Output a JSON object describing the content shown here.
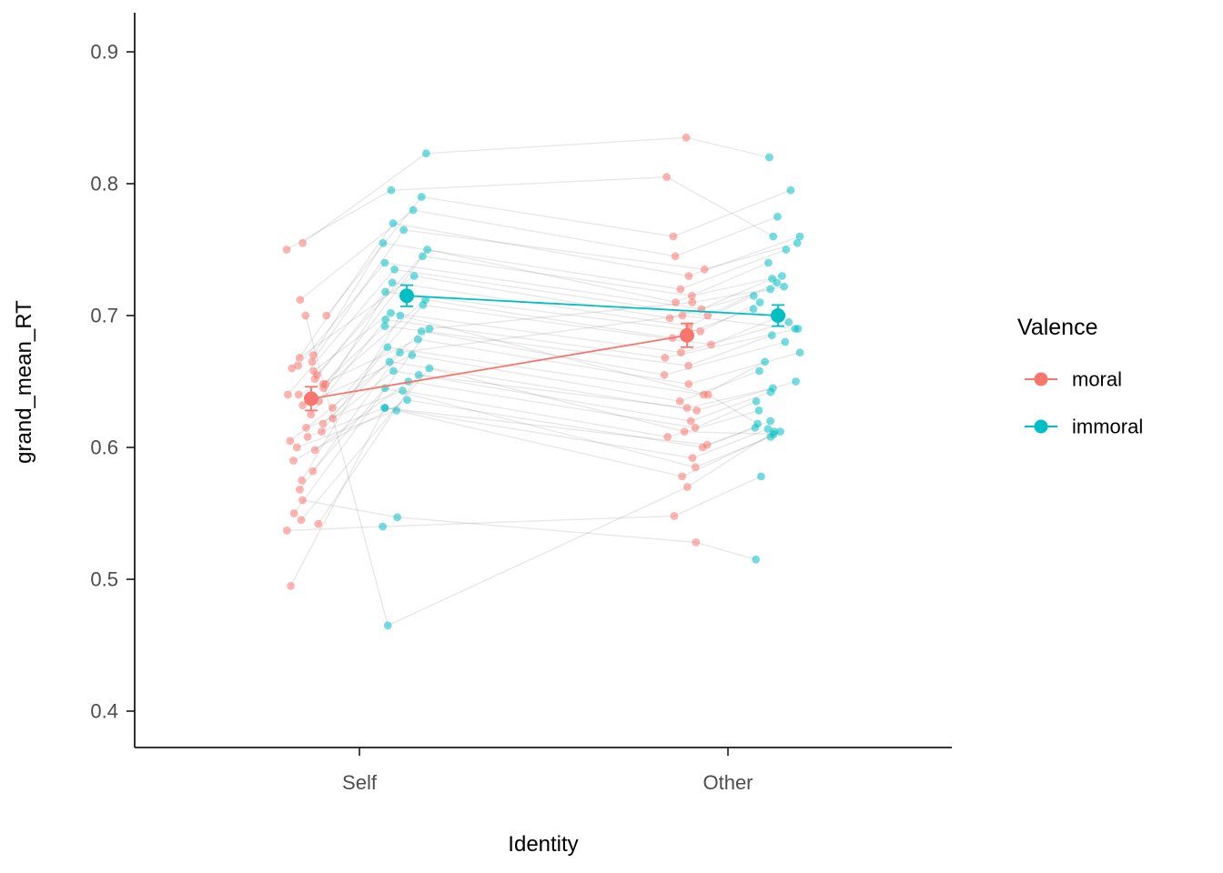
{
  "chart_data": {
    "type": "line",
    "title": "",
    "xlabel": "Identity",
    "ylabel": "grand_mean_RT",
    "x_categories": [
      "Self",
      "Other"
    ],
    "y_tick_labels": [
      "0.9",
      "0.8",
      "0.7",
      "0.6",
      "0.5",
      "0.4"
    ],
    "y_ticks": [
      0.9,
      0.8,
      0.7,
      0.6,
      0.5,
      0.4
    ],
    "ylim": [
      0.372,
      0.93
    ],
    "grid": false,
    "legend": {
      "title": "Valence",
      "position": "right",
      "entries": [
        {
          "label": "moral",
          "color": "#F8766D"
        },
        {
          "label": "immoral",
          "color": "#00BFC4"
        }
      ]
    },
    "summary": {
      "note": "group means with standard-error bars, connected across Identity",
      "series": [
        {
          "name": "moral",
          "color": "#F8766D",
          "x": [
            "Self",
            "Other"
          ],
          "means": [
            0.637,
            0.685
          ],
          "se": [
            0.009,
            0.009
          ]
        },
        {
          "name": "immoral",
          "color": "#00BFC4",
          "x": [
            "Self",
            "Other"
          ],
          "means": [
            0.715,
            0.7
          ],
          "se": [
            0.008,
            0.008
          ]
        }
      ]
    },
    "condition_order": [
      "moral_Self",
      "immoral_Self",
      "moral_Other",
      "immoral_Other"
    ],
    "subjects": [
      [
        0.75,
        0.795,
        0.805,
        0.76
      ],
      [
        0.755,
        0.823,
        0.835,
        0.82
      ],
      [
        0.7,
        0.79,
        0.76,
        0.795
      ],
      [
        0.712,
        0.78,
        0.745,
        0.775
      ],
      [
        0.66,
        0.77,
        0.73,
        0.76
      ],
      [
        0.665,
        0.765,
        0.735,
        0.755
      ],
      [
        0.67,
        0.755,
        0.72,
        0.75
      ],
      [
        0.655,
        0.75,
        0.71,
        0.74
      ],
      [
        0.648,
        0.745,
        0.715,
        0.73
      ],
      [
        0.662,
        0.74,
        0.705,
        0.728
      ],
      [
        0.64,
        0.735,
        0.7,
        0.725
      ],
      [
        0.668,
        0.73,
        0.698,
        0.72
      ],
      [
        0.635,
        0.725,
        0.692,
        0.715
      ],
      [
        0.652,
        0.718,
        0.688,
        0.71
      ],
      [
        0.645,
        0.712,
        0.683,
        0.705
      ],
      [
        0.63,
        0.708,
        0.678,
        0.7
      ],
      [
        0.658,
        0.702,
        0.672,
        0.695
      ],
      [
        0.625,
        0.697,
        0.668,
        0.69
      ],
      [
        0.648,
        0.692,
        0.662,
        0.685
      ],
      [
        0.618,
        0.688,
        0.655,
        0.68
      ],
      [
        0.64,
        0.682,
        0.648,
        0.672
      ],
      [
        0.612,
        0.676,
        0.64,
        0.665
      ],
      [
        0.632,
        0.67,
        0.635,
        0.658
      ],
      [
        0.605,
        0.665,
        0.628,
        0.65
      ],
      [
        0.622,
        0.658,
        0.62,
        0.642
      ],
      [
        0.598,
        0.65,
        0.615,
        0.635
      ],
      [
        0.615,
        0.643,
        0.608,
        0.628
      ],
      [
        0.59,
        0.636,
        0.6,
        0.62
      ],
      [
        0.608,
        0.63,
        0.592,
        0.614
      ],
      [
        0.582,
        0.645,
        0.585,
        0.608
      ],
      [
        0.6,
        0.628,
        0.578,
        0.612
      ],
      [
        0.575,
        0.7,
        0.64,
        0.618
      ],
      [
        0.545,
        0.66,
        0.612,
        0.61
      ],
      [
        0.568,
        0.672,
        0.7,
        0.69
      ],
      [
        0.542,
        0.655,
        0.63,
        0.645
      ],
      [
        0.55,
        0.69,
        0.71,
        0.722
      ],
      [
        0.537,
        0.54,
        0.548,
        0.578
      ],
      [
        0.495,
        0.63,
        0.602,
        0.615
      ],
      [
        0.56,
        0.547,
        0.528,
        0.515
      ],
      [
        0.7,
        0.465,
        0.57,
        0.612
      ]
    ]
  }
}
